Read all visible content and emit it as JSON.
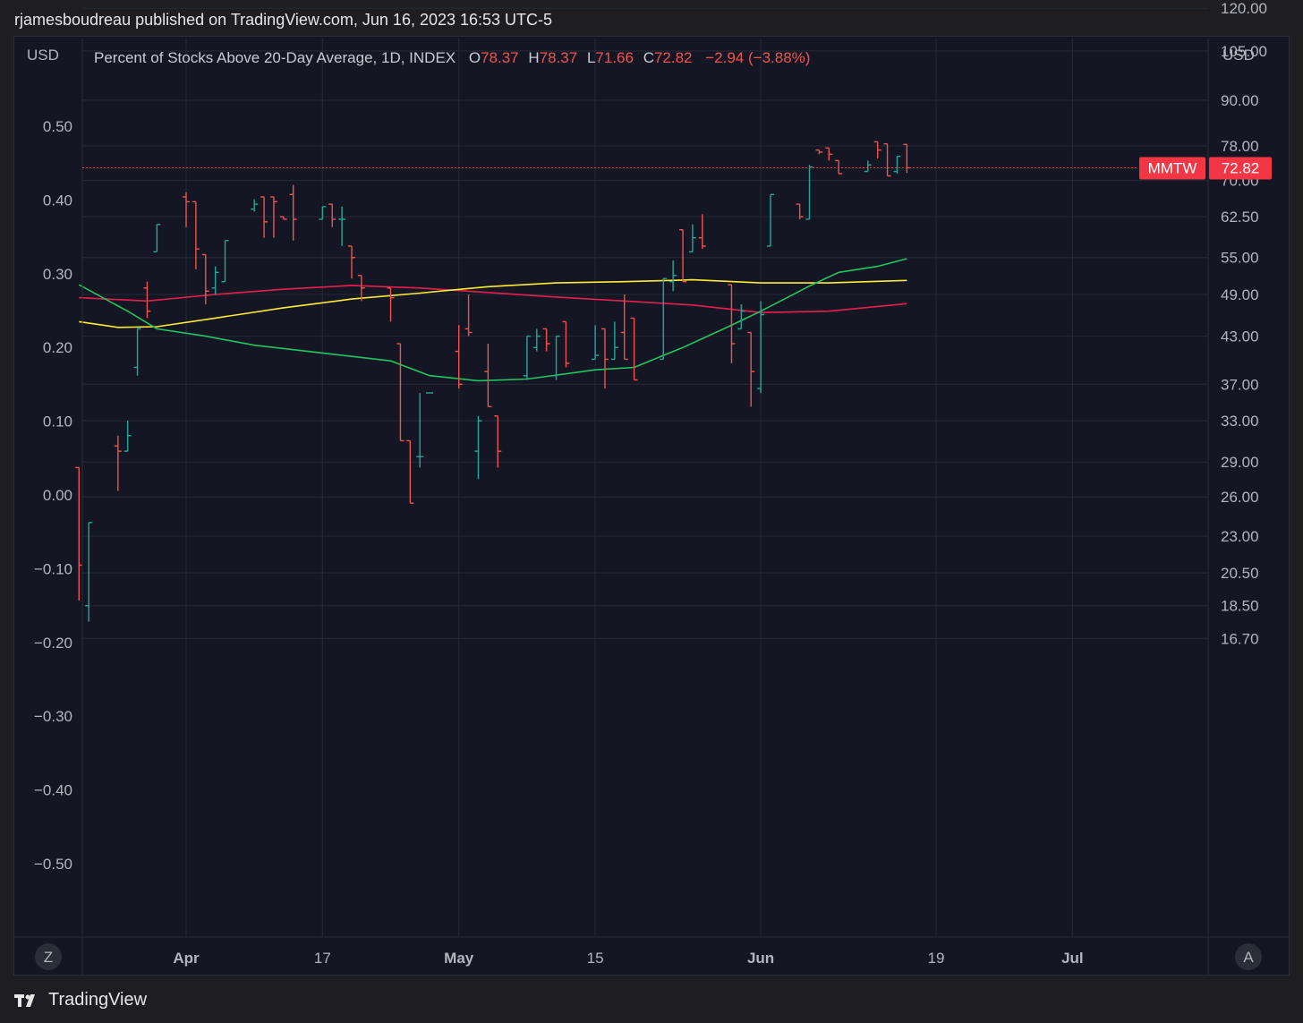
{
  "header": {
    "publisher_line": "rjamesboudreau published on TradingView.com, Jun 16, 2023 16:53 UTC-5"
  },
  "footer": {
    "brand": "TradingView",
    "logo_icon": "tradingview-logo-icon"
  },
  "colors": {
    "up": "#26a69a",
    "down": "#ef5350",
    "price_label": "#f23645",
    "ma_red": "#e91e4c",
    "ma_yellow": "#ffeb3b",
    "ma_green": "#22c55e"
  },
  "chart_data": {
    "type": "ohlc-bar",
    "legend": {
      "title": "Percent of Stocks Above 20-Day Average, 1D, INDEX",
      "o_label": "O",
      "o_value": "78.37",
      "h_label": "H",
      "h_value": "78.37",
      "l_label": "L",
      "l_value": "71.66",
      "c_label": "C",
      "c_value": "72.82",
      "change": "−2.94 (−3.88%)"
    },
    "left_axis": {
      "unit_label": "USD",
      "ticks": [
        {
          "label": "0.50",
          "value": 0.5
        },
        {
          "label": "0.40",
          "value": 0.4
        },
        {
          "label": "0.30",
          "value": 0.3
        },
        {
          "label": "0.20",
          "value": 0.2
        },
        {
          "label": "0.10",
          "value": 0.1
        },
        {
          "label": "0.00",
          "value": 0.0
        },
        {
          "label": "−0.10",
          "value": -0.1
        },
        {
          "label": "−0.20",
          "value": -0.2
        },
        {
          "label": "−0.30",
          "value": -0.3
        },
        {
          "label": "−0.40",
          "value": -0.4
        },
        {
          "label": "−0.50",
          "value": -0.5
        }
      ]
    },
    "right_axis": {
      "unit_label": "USD",
      "scale": "log",
      "ticks": [
        "120.00",
        "105.00",
        "90.00",
        "78.00",
        "70.00",
        "62.50",
        "55.00",
        "49.00",
        "43.00",
        "37.00",
        "33.00",
        "29.00",
        "26.00",
        "23.00",
        "20.50",
        "18.50",
        "16.70"
      ]
    },
    "x_axis": {
      "ticks": [
        {
          "label": "Apr",
          "date": "2023-04-03",
          "bold": true
        },
        {
          "label": "17",
          "date": "2023-04-17",
          "bold": false
        },
        {
          "label": "May",
          "date": "2023-05-01",
          "bold": true
        },
        {
          "label": "15",
          "date": "2023-05-15",
          "bold": false
        },
        {
          "label": "Jun",
          "date": "2023-06-01",
          "bold": true
        },
        {
          "label": "19",
          "date": "2023-06-19",
          "bold": false
        },
        {
          "label": "Jul",
          "date": "2023-07-03",
          "bold": true
        }
      ]
    },
    "symbol_label": "MMTW",
    "last_price_label": "72.82",
    "last_price": 72.82,
    "bars": [
      {
        "d": "2023-03-23",
        "o": 28.5,
        "h": 28.5,
        "l": 18.8,
        "c": 21.0
      },
      {
        "d": "2023-03-24",
        "o": 18.5,
        "h": 24.0,
        "l": 17.6,
        "c": 24.0
      },
      {
        "d": "2023-03-27",
        "o": 30.5,
        "h": 31.5,
        "l": 26.5,
        "c": 30.0
      },
      {
        "d": "2023-03-28",
        "o": 30.0,
        "h": 33.0,
        "l": 30.0,
        "c": 31.5
      },
      {
        "d": "2023-03-29",
        "o": 39.0,
        "h": 44.0,
        "l": 38.0,
        "c": 44.0
      },
      {
        "d": "2023-03-30",
        "o": 50.0,
        "h": 51.0,
        "l": 45.5,
        "c": 46.5
      },
      {
        "d": "2023-03-31",
        "o": 56.0,
        "h": 61.0,
        "l": 56.0,
        "c": 61.0
      },
      {
        "d": "2023-04-03",
        "o": 66.5,
        "h": 67.5,
        "l": 60.5,
        "c": 65.5
      },
      {
        "d": "2023-04-04",
        "o": 65.5,
        "h": 65.5,
        "l": 53.0,
        "c": 56.5
      },
      {
        "d": "2023-04-05",
        "o": 55.5,
        "h": 55.5,
        "l": 47.5,
        "c": 49.5
      },
      {
        "d": "2023-04-06",
        "o": 50.0,
        "h": 53.5,
        "l": 49.0,
        "c": 52.5
      },
      {
        "d": "2023-04-07",
        "o": 51.0,
        "h": 58.0,
        "l": 51.0,
        "c": 58.0
      },
      {
        "d": "2023-04-10",
        "o": 64.0,
        "h": 66.0,
        "l": 63.5,
        "c": 65.0
      },
      {
        "d": "2023-04-11",
        "o": 66.5,
        "h": 66.5,
        "l": 58.5,
        "c": 61.5
      },
      {
        "d": "2023-04-12",
        "o": 66.5,
        "h": 66.5,
        "l": 58.5,
        "c": 65.5
      },
      {
        "d": "2023-04-13",
        "o": 62.5,
        "h": 62.5,
        "l": 62.0,
        "c": 62.0
      },
      {
        "d": "2023-04-14",
        "o": 67.0,
        "h": 69.0,
        "l": 58.0,
        "c": 62.0
      },
      {
        "d": "2023-04-17",
        "o": 62.0,
        "h": 64.5,
        "l": 62.0,
        "c": 64.5
      },
      {
        "d": "2023-04-18",
        "o": 65.0,
        "h": 65.0,
        "l": 60.5,
        "c": 62.0
      },
      {
        "d": "2023-04-19",
        "o": 62.0,
        "h": 64.5,
        "l": 57.0,
        "c": 62.0
      },
      {
        "d": "2023-04-20",
        "o": 57.0,
        "h": 57.0,
        "l": 51.5,
        "c": 55.0
      },
      {
        "d": "2023-04-21",
        "o": 52.0,
        "h": 52.0,
        "l": 48.0,
        "c": 50.0
      },
      {
        "d": "2023-04-24",
        "o": 50.0,
        "h": 50.0,
        "l": 45.0,
        "c": 48.5
      },
      {
        "d": "2023-04-25",
        "o": 42.0,
        "h": 42.0,
        "l": 31.0,
        "c": 31.0
      },
      {
        "d": "2023-04-26",
        "o": 31.0,
        "h": 31.0,
        "l": 25.5,
        "c": 25.5
      },
      {
        "d": "2023-04-27",
        "o": 29.5,
        "h": 36.0,
        "l": 28.5,
        "c": 29.5
      },
      {
        "d": "2023-04-28",
        "o": 36.0,
        "h": 36.0,
        "l": 36.0,
        "c": 36.0
      },
      {
        "d": "2023-05-01",
        "o": 41.0,
        "h": 44.5,
        "l": 36.5,
        "c": 37.0
      },
      {
        "d": "2023-05-02",
        "o": 44.0,
        "h": 49.0,
        "l": 43.0,
        "c": 43.5
      },
      {
        "d": "2023-05-03",
        "o": 30.0,
        "h": 33.5,
        "l": 27.5,
        "c": 33.0
      },
      {
        "d": "2023-05-04",
        "o": 38.5,
        "h": 42.0,
        "l": 34.5,
        "c": 34.5
      },
      {
        "d": "2023-05-05",
        "o": 33.5,
        "h": 33.5,
        "l": 28.5,
        "c": 30.0
      },
      {
        "d": "2023-05-08",
        "o": 38.0,
        "h": 43.0,
        "l": 37.5,
        "c": 43.0
      },
      {
        "d": "2023-05-09",
        "o": 41.5,
        "h": 44.0,
        "l": 41.0,
        "c": 43.0
      },
      {
        "d": "2023-05-10",
        "o": 44.0,
        "h": 44.0,
        "l": 41.0,
        "c": 42.0
      },
      {
        "d": "2023-05-11",
        "o": 38.0,
        "h": 43.0,
        "l": 37.5,
        "c": 43.0
      },
      {
        "d": "2023-05-12",
        "o": 45.0,
        "h": 45.0,
        "l": 39.0,
        "c": 39.5
      },
      {
        "d": "2023-05-15",
        "o": 40.0,
        "h": 44.5,
        "l": 40.0,
        "c": 40.5
      },
      {
        "d": "2023-05-16",
        "o": 44.0,
        "h": 44.0,
        "l": 36.5,
        "c": 40.0
      },
      {
        "d": "2023-05-17",
        "o": 40.0,
        "h": 45.0,
        "l": 40.0,
        "c": 41.5
      },
      {
        "d": "2023-05-18",
        "o": 43.5,
        "h": 49.0,
        "l": 40.0,
        "c": 40.0
      },
      {
        "d": "2023-05-19",
        "o": 45.5,
        "h": 45.5,
        "l": 37.5,
        "c": 37.5
      },
      {
        "d": "2023-05-22",
        "o": 40.0,
        "h": 51.5,
        "l": 40.0,
        "c": 51.5
      },
      {
        "d": "2023-05-23",
        "o": 51.0,
        "h": 54.5,
        "l": 49.5,
        "c": 52.0
      },
      {
        "d": "2023-05-24",
        "o": 60.0,
        "h": 60.0,
        "l": 51.0,
        "c": 51.0
      },
      {
        "d": "2023-05-25",
        "o": 56.0,
        "h": 61.0,
        "l": 56.0,
        "c": 58.5
      },
      {
        "d": "2023-05-26",
        "o": 58.5,
        "h": 63.0,
        "l": 56.5,
        "c": 57.0
      },
      {
        "d": "2023-05-29",
        "o": 50.5,
        "h": 50.5,
        "l": 39.5,
        "c": 42.0
      },
      {
        "d": "2023-05-30",
        "o": 44.0,
        "h": 47.5,
        "l": 44.0,
        "c": 46.5
      },
      {
        "d": "2023-05-31",
        "o": 43.5,
        "h": 43.5,
        "l": 34.5,
        "c": 38.5
      },
      {
        "d": "2023-06-01",
        "o": 36.5,
        "h": 48.0,
        "l": 36.0,
        "c": 46.0
      },
      {
        "d": "2023-06-02",
        "o": 57.0,
        "h": 67.0,
        "l": 57.0,
        "c": 67.0
      },
      {
        "d": "2023-06-05",
        "o": 65.0,
        "h": 65.0,
        "l": 62.0,
        "c": 62.5
      },
      {
        "d": "2023-06-06",
        "o": 62.0,
        "h": 73.5,
        "l": 62.0,
        "c": 73.0
      },
      {
        "d": "2023-06-07",
        "o": 77.0,
        "h": 77.0,
        "l": 76.0,
        "c": 76.5
      },
      {
        "d": "2023-06-08",
        "o": 77.5,
        "h": 77.5,
        "l": 74.5,
        "c": 76.0
      },
      {
        "d": "2023-06-09",
        "o": 74.5,
        "h": 74.5,
        "l": 71.5,
        "c": 71.5
      },
      {
        "d": "2023-06-12",
        "o": 72.0,
        "h": 74.5,
        "l": 72.0,
        "c": 73.5
      },
      {
        "d": "2023-06-13",
        "o": 79.0,
        "h": 79.0,
        "l": 75.0,
        "c": 77.0
      },
      {
        "d": "2023-06-14",
        "o": 78.5,
        "h": 78.5,
        "l": 71.0,
        "c": 71.0
      },
      {
        "d": "2023-06-15",
        "o": 72.0,
        "h": 75.5,
        "l": 71.5,
        "c": 75.5
      },
      {
        "d": "2023-06-16",
        "o": 78.37,
        "h": 78.37,
        "l": 71.66,
        "c": 72.82
      }
    ],
    "moving_averages": [
      {
        "color_key": "ma_red",
        "points": [
          [
            "2023-03-23",
            48.5
          ],
          [
            "2023-03-30",
            48.0
          ],
          [
            "2023-04-06",
            49.0
          ],
          [
            "2023-04-13",
            49.8
          ],
          [
            "2023-04-20",
            50.4
          ],
          [
            "2023-04-27",
            50.0
          ],
          [
            "2023-05-04",
            49.3
          ],
          [
            "2023-05-11",
            48.6
          ],
          [
            "2023-05-18",
            48.0
          ],
          [
            "2023-05-25",
            47.4
          ],
          [
            "2023-06-01",
            46.3
          ],
          [
            "2023-06-08",
            46.5
          ],
          [
            "2023-06-16",
            47.6
          ]
        ]
      },
      {
        "color_key": "ma_yellow",
        "points": [
          [
            "2023-03-23",
            45.0
          ],
          [
            "2023-03-27",
            44.2
          ],
          [
            "2023-03-31",
            44.3
          ],
          [
            "2023-04-06",
            45.5
          ],
          [
            "2023-04-13",
            47.0
          ],
          [
            "2023-04-20",
            48.3
          ],
          [
            "2023-04-27",
            49.2
          ],
          [
            "2023-05-04",
            50.2
          ],
          [
            "2023-05-11",
            50.8
          ],
          [
            "2023-05-18",
            51.0
          ],
          [
            "2023-05-25",
            51.3
          ],
          [
            "2023-06-01",
            50.8
          ],
          [
            "2023-06-08",
            50.8
          ],
          [
            "2023-06-16",
            51.2
          ]
        ]
      },
      {
        "color_key": "ma_green",
        "points": [
          [
            "2023-03-23",
            50.5
          ],
          [
            "2023-03-28",
            46.5
          ],
          [
            "2023-03-31",
            44.0
          ],
          [
            "2023-04-05",
            43.0
          ],
          [
            "2023-04-10",
            41.8
          ],
          [
            "2023-04-17",
            40.8
          ],
          [
            "2023-04-24",
            39.8
          ],
          [
            "2023-04-28",
            38.0
          ],
          [
            "2023-05-03",
            37.4
          ],
          [
            "2023-05-08",
            37.6
          ],
          [
            "2023-05-15",
            38.7
          ],
          [
            "2023-05-19",
            39.0
          ],
          [
            "2023-05-24",
            41.5
          ],
          [
            "2023-05-29",
            44.5
          ],
          [
            "2023-06-01",
            46.5
          ],
          [
            "2023-06-06",
            50.3
          ],
          [
            "2023-06-09",
            52.5
          ],
          [
            "2023-06-13",
            53.5
          ],
          [
            "2023-06-16",
            54.8
          ]
        ]
      }
    ]
  }
}
